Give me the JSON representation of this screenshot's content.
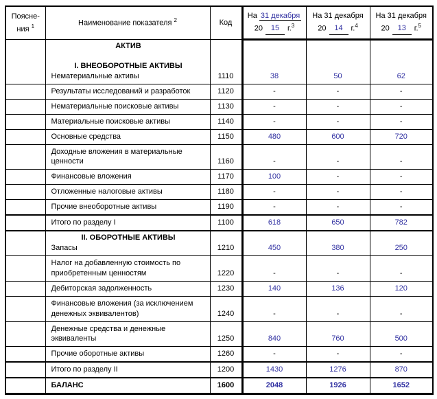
{
  "header": {
    "explanations": {
      "line1": "Поясне-",
      "line2": "ния",
      "sup": "1"
    },
    "indicator": {
      "label": "Наименование показателя",
      "sup": "2"
    },
    "code": {
      "label": "Код"
    },
    "periods": [
      {
        "prefix": "На",
        "date": "31 декабря",
        "century": "20",
        "year": "15",
        "year_suffix": "г.",
        "sup": "3",
        "date_filled": true
      },
      {
        "prefix": "На",
        "date": "31 декабря",
        "century": "20",
        "year": "14",
        "year_suffix": "г.",
        "sup": "4",
        "date_filled": false
      },
      {
        "prefix": "На",
        "date": "31 декабря",
        "century": "20",
        "year": "13",
        "year_suffix": "г.",
        "sup": "5",
        "date_filled": false
      }
    ]
  },
  "rows": [
    {
      "sections": [
        "АКТИВ",
        "",
        "I. ВНЕОБОРОТНЫЕ АКТИВЫ"
      ],
      "name": "Нематериальные активы",
      "code": "1110",
      "values": [
        "38",
        "50",
        "62"
      ]
    },
    {
      "name": "Результаты исследований и разработок",
      "code": "1120",
      "values": [
        "-",
        "-",
        "-"
      ]
    },
    {
      "name": "Нематериальные поисковые активы",
      "code": "1130",
      "values": [
        "-",
        "-",
        "-"
      ]
    },
    {
      "name": "Материальные поисковые активы",
      "code": "1140",
      "values": [
        "-",
        "-",
        "-"
      ]
    },
    {
      "name": "Основные средства",
      "code": "1150",
      "values": [
        "480",
        "600",
        "720"
      ]
    },
    {
      "name": "Доходные вложения в материальные ценности",
      "code": "1160",
      "values": [
        "-",
        "-",
        "-"
      ]
    },
    {
      "name": "Финансовые вложения",
      "code": "1170",
      "values": [
        "100",
        "-",
        "-"
      ]
    },
    {
      "name": "Отложенные налоговые активы",
      "code": "1180",
      "values": [
        "-",
        "-",
        "-"
      ]
    },
    {
      "name": "Прочие внеоборотные активы",
      "code": "1190",
      "values": [
        "-",
        "-",
        "-"
      ]
    },
    {
      "name": "Итого по разделу I",
      "code": "1100",
      "values": [
        "618",
        "650",
        "782"
      ],
      "total": true
    },
    {
      "sections": [
        "II. ОБОРОТНЫЕ АКТИВЫ"
      ],
      "name": "Запасы",
      "code": "1210",
      "values": [
        "450",
        "380",
        "250"
      ]
    },
    {
      "name": "Налог на добавленную стоимость по приобретенным ценностям",
      "code": "1220",
      "values": [
        "-",
        "-",
        "-"
      ]
    },
    {
      "name": "Дебиторская задолженность",
      "code": "1230",
      "values": [
        "140",
        "136",
        "120"
      ]
    },
    {
      "name": "Финансовые вложения (за исключением денежных эквивалентов)",
      "code": "1240",
      "values": [
        "-",
        "-",
        "-"
      ]
    },
    {
      "name": "Денежные средства и денежные эквиваленты",
      "code": "1250",
      "values": [
        "840",
        "760",
        "500"
      ]
    },
    {
      "name": "Прочие оборотные активы",
      "code": "1260",
      "values": [
        "-",
        "-",
        "-"
      ]
    },
    {
      "name": "Итого по разделу II",
      "code": "1200",
      "values": [
        "1430",
        "1276",
        "870"
      ],
      "total": true
    },
    {
      "name": "БАЛАНС",
      "code": "1600",
      "values": [
        "2048",
        "1926",
        "1652"
      ],
      "balance": true
    }
  ],
  "colors": {
    "value_text": "#3232a2",
    "border": "#000000"
  }
}
